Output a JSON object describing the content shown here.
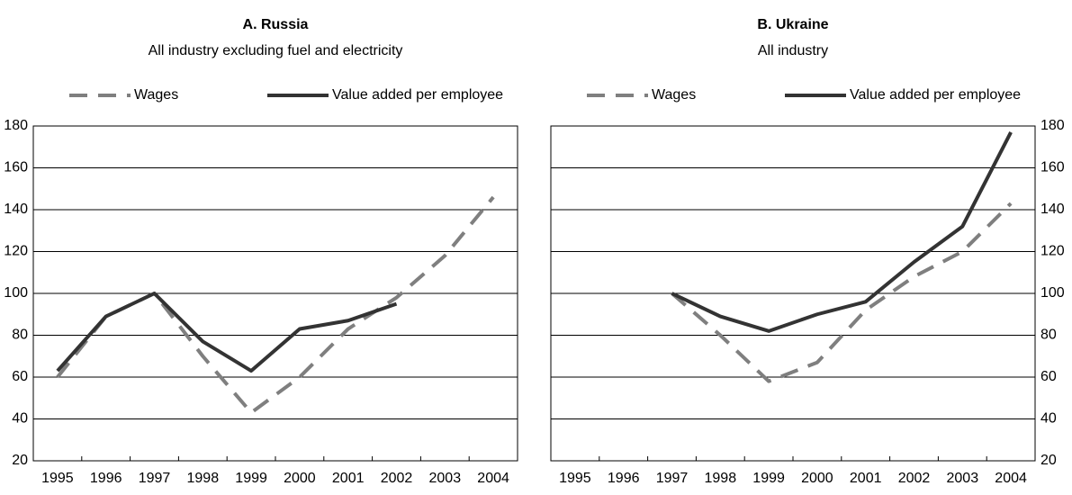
{
  "chart_data": [
    {
      "type": "line",
      "title": "A. Russia",
      "subtitle": "All industry excluding fuel and electricity",
      "categories": [
        "1995",
        "1996",
        "1997",
        "1998",
        "1999",
        "2000",
        "2001",
        "2002",
        "2003",
        "2004"
      ],
      "series": [
        {
          "name": "Wages",
          "color": "#7f7f7f",
          "dashed": true,
          "values": [
            60,
            89,
            100,
            70,
            43,
            60,
            83,
            98,
            118,
            146
          ]
        },
        {
          "name": "Value added per employee",
          "color": "#333333",
          "dashed": false,
          "values": [
            63,
            89,
            100,
            77,
            63,
            83,
            87,
            95,
            null,
            null
          ]
        }
      ],
      "ylim": [
        20,
        180
      ],
      "yticks": [
        20,
        40,
        60,
        80,
        100,
        120,
        140,
        160,
        180
      ],
      "grid": true,
      "yaxis_side": "left"
    },
    {
      "type": "line",
      "title": "B. Ukraine",
      "subtitle": "All industry",
      "categories": [
        "1995",
        "1996",
        "1997",
        "1998",
        "1999",
        "2000",
        "2001",
        "2002",
        "2003",
        "2004"
      ],
      "series": [
        {
          "name": "Wages",
          "color": "#7f7f7f",
          "dashed": true,
          "values": [
            null,
            null,
            100,
            80,
            58,
            67,
            92,
            108,
            120,
            143
          ]
        },
        {
          "name": "Value added per employee",
          "color": "#333333",
          "dashed": false,
          "values": [
            null,
            null,
            100,
            89,
            82,
            90,
            96,
            115,
            132,
            177
          ]
        }
      ],
      "ylim": [
        20,
        180
      ],
      "yticks": [
        20,
        40,
        60,
        80,
        100,
        120,
        140,
        160,
        180
      ],
      "grid": true,
      "yaxis_side": "right"
    }
  ]
}
